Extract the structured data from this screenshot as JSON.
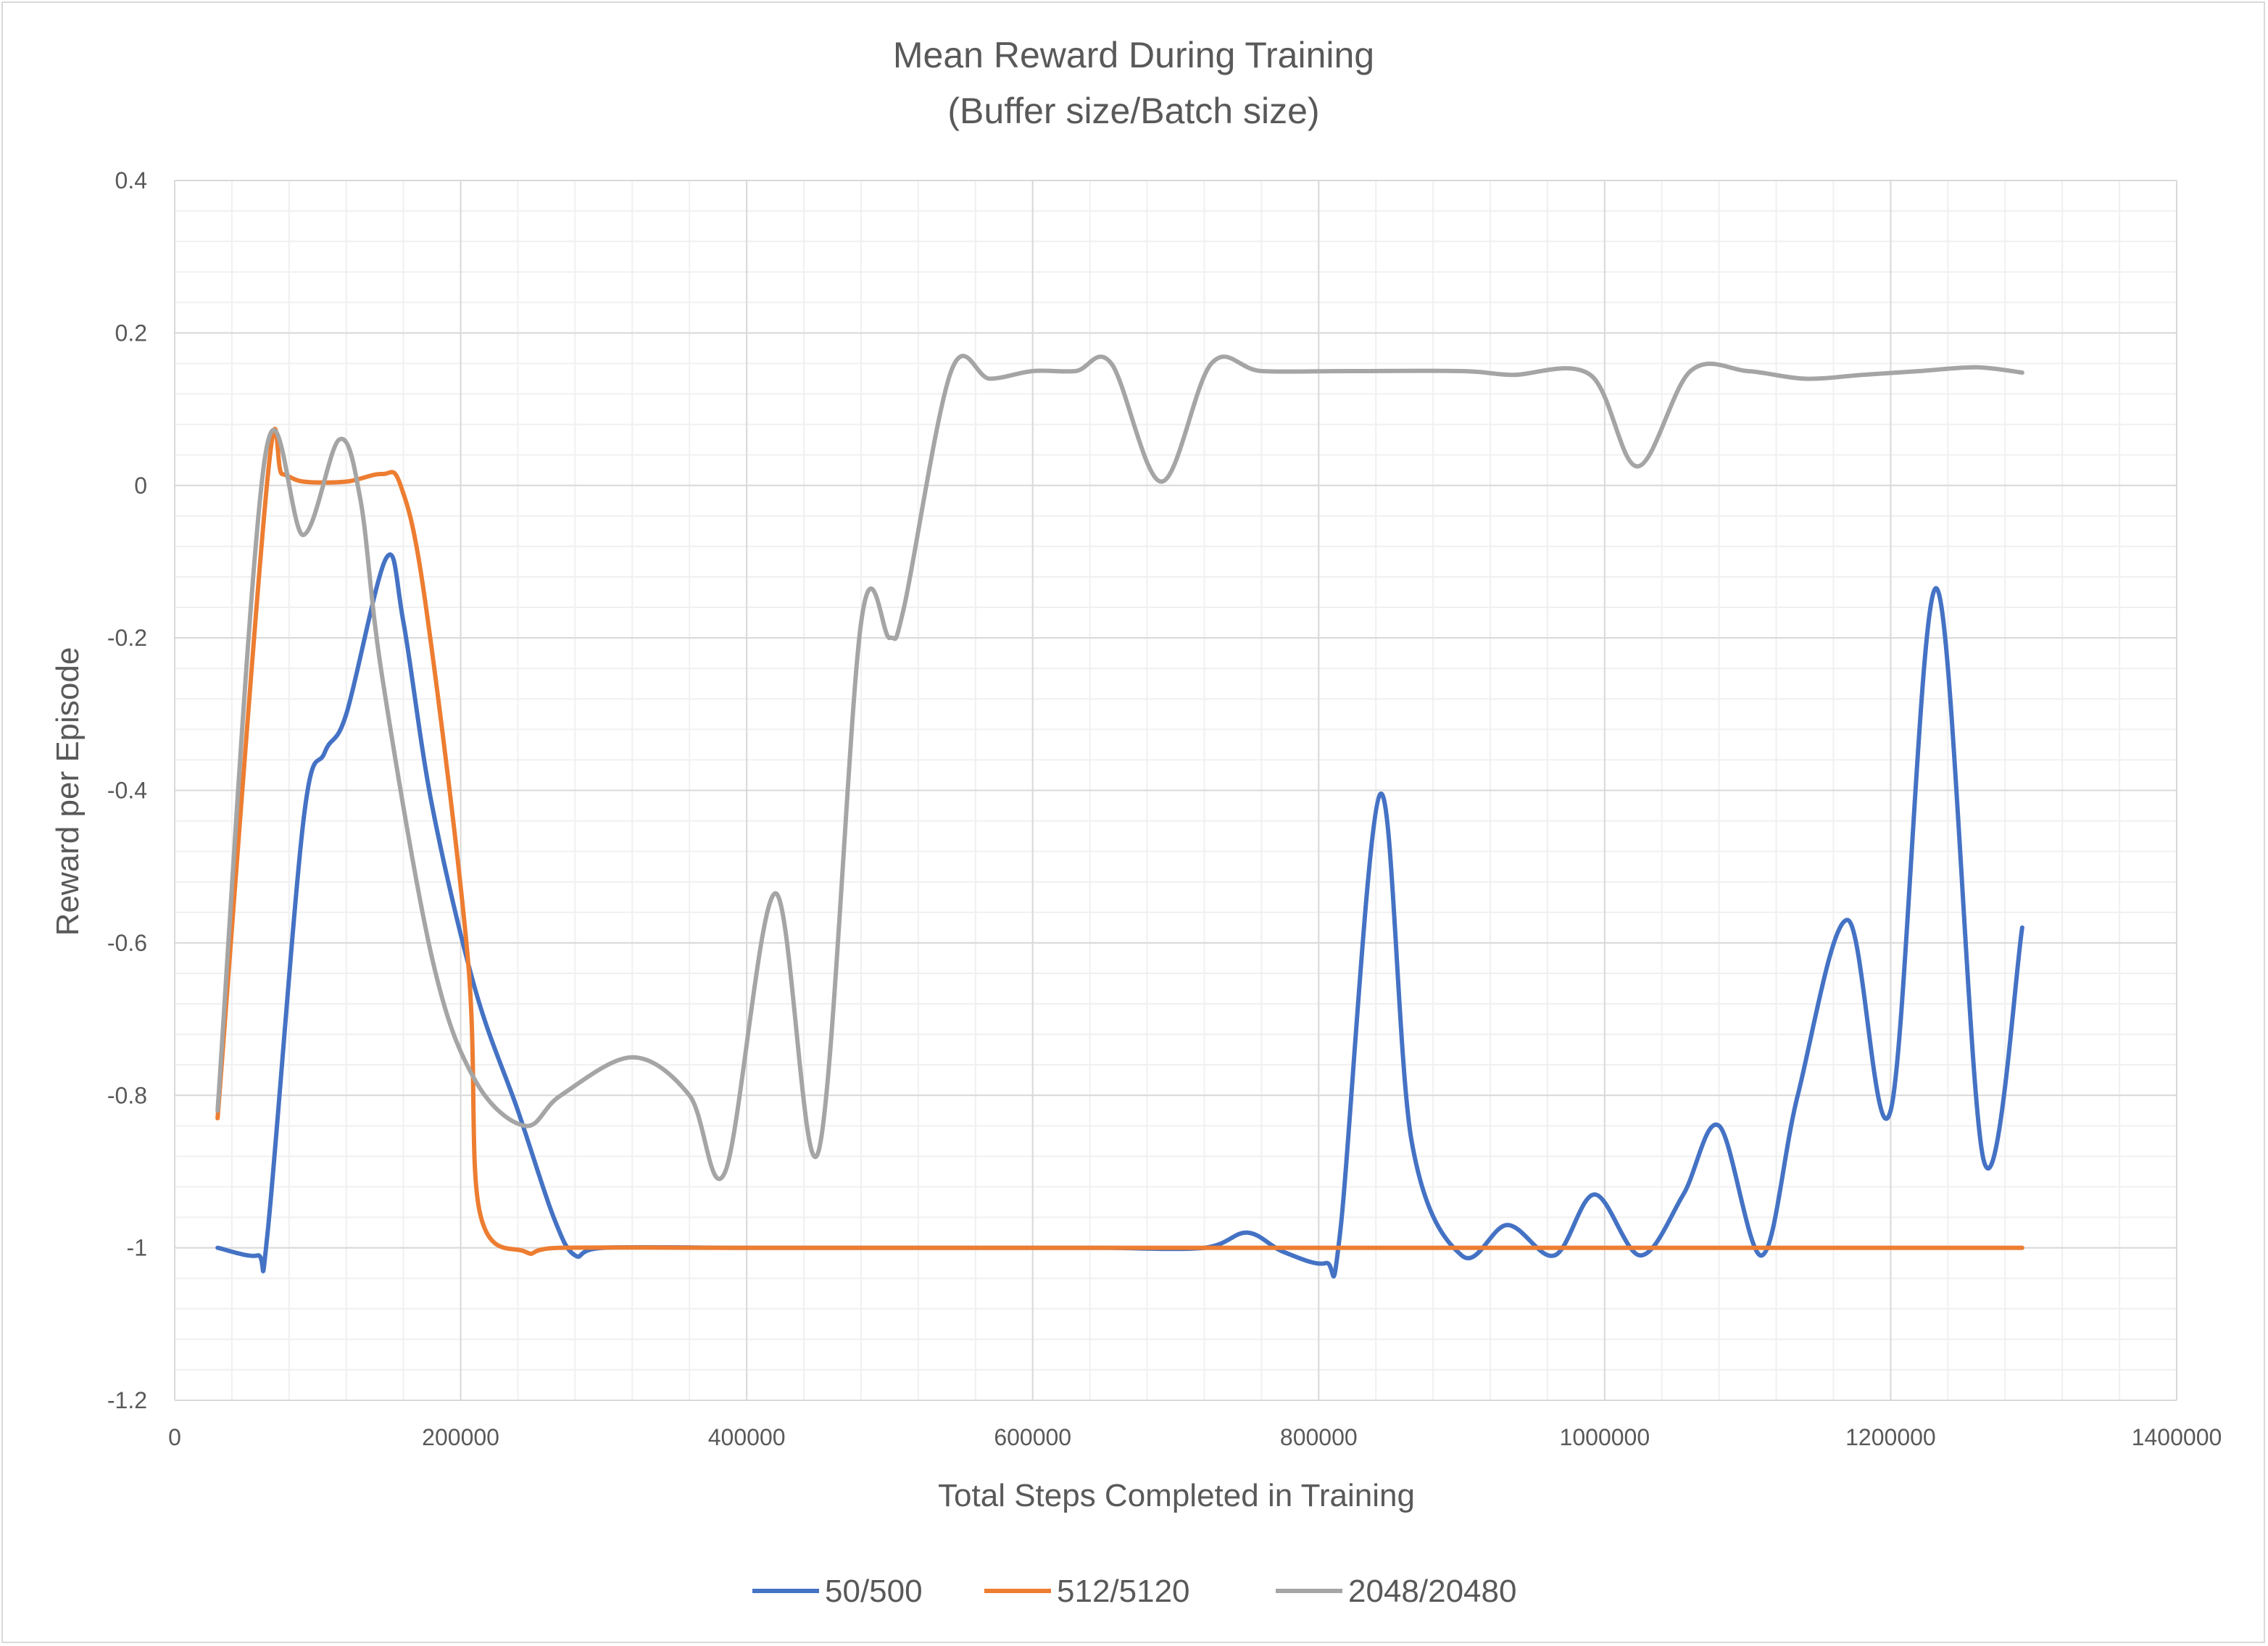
{
  "chart_data": {
    "type": "line",
    "title": "Mean Reward During Training",
    "subtitle": "(Buffer size/Batch size)",
    "xlabel": "Total Steps Completed in Training",
    "ylabel": "Reward per Episode",
    "xlim": [
      0,
      1400000
    ],
    "ylim": [
      -1.2,
      0.4
    ],
    "x_ticks": [
      0,
      200000,
      400000,
      600000,
      800000,
      1000000,
      1200000,
      1400000
    ],
    "x_tick_labels": [
      "0",
      "200000",
      "400000",
      "600000",
      "800000",
      "1000000",
      "1200000",
      "1400000"
    ],
    "y_ticks": [
      -1.2,
      -1,
      -0.8,
      -0.6,
      -0.4,
      -0.2,
      0,
      0.2,
      0.4
    ],
    "y_tick_labels": [
      "-1.2",
      "-1",
      "-0.8",
      "-0.6",
      "-0.4",
      "-0.2",
      "0",
      "0.2",
      "0.4"
    ],
    "grid": true,
    "minor_grid": true,
    "legend_position": "bottom",
    "series": [
      {
        "name": "50/500",
        "color": "#4472C4",
        "points": [
          [
            30000,
            -1.0
          ],
          [
            58000,
            -1.01
          ],
          [
            65000,
            -0.98
          ],
          [
            90000,
            -0.44
          ],
          [
            105000,
            -0.35
          ],
          [
            120000,
            -0.3
          ],
          [
            148000,
            -0.095
          ],
          [
            160000,
            -0.18
          ],
          [
            180000,
            -0.42
          ],
          [
            210000,
            -0.66
          ],
          [
            240000,
            -0.82
          ],
          [
            265000,
            -0.96
          ],
          [
            280000,
            -1.01
          ],
          [
            300000,
            -1.0
          ],
          [
            400000,
            -1.0
          ],
          [
            500000,
            -1.0
          ],
          [
            600000,
            -1.0
          ],
          [
            650000,
            -1.0
          ],
          [
            720000,
            -1.0
          ],
          [
            750000,
            -0.98
          ],
          [
            775000,
            -1.005
          ],
          [
            805000,
            -1.02
          ],
          [
            815000,
            -0.98
          ],
          [
            843000,
            -0.405
          ],
          [
            865000,
            -0.86
          ],
          [
            900000,
            -1.01
          ],
          [
            932000,
            -0.97
          ],
          [
            965000,
            -1.01
          ],
          [
            993000,
            -0.93
          ],
          [
            1025000,
            -1.01
          ],
          [
            1055000,
            -0.93
          ],
          [
            1080000,
            -0.84
          ],
          [
            1110000,
            -1.01
          ],
          [
            1135000,
            -0.8
          ],
          [
            1170000,
            -0.57
          ],
          [
            1200000,
            -0.82
          ],
          [
            1232000,
            -0.135
          ],
          [
            1265000,
            -0.885
          ],
          [
            1292000,
            -0.58
          ]
        ]
      },
      {
        "name": "512/5120",
        "color": "#ED7D31",
        "points": [
          [
            30000,
            -0.83
          ],
          [
            65000,
            0.01
          ],
          [
            75000,
            0.015
          ],
          [
            90000,
            0.005
          ],
          [
            120000,
            0.005
          ],
          [
            145000,
            0.015
          ],
          [
            158000,
            0.0
          ],
          [
            175000,
            -0.15
          ],
          [
            205000,
            -0.62
          ],
          [
            213000,
            -0.95
          ],
          [
            245000,
            -1.005
          ],
          [
            270000,
            -1.0
          ],
          [
            400000,
            -1.0
          ],
          [
            600000,
            -1.0
          ],
          [
            800000,
            -1.0
          ],
          [
            1000000,
            -1.0
          ],
          [
            1200000,
            -1.0
          ],
          [
            1292000,
            -1.0
          ]
        ]
      },
      {
        "name": "2048/20480",
        "color": "#A5A5A5",
        "points": [
          [
            30000,
            -0.82
          ],
          [
            63000,
            0.035
          ],
          [
            90000,
            -0.065
          ],
          [
            115000,
            0.06
          ],
          [
            130000,
            -0.02
          ],
          [
            145000,
            -0.25
          ],
          [
            180000,
            -0.62
          ],
          [
            210000,
            -0.78
          ],
          [
            245000,
            -0.84
          ],
          [
            270000,
            -0.8
          ],
          [
            320000,
            -0.75
          ],
          [
            360000,
            -0.8
          ],
          [
            385000,
            -0.9
          ],
          [
            420000,
            -0.535
          ],
          [
            450000,
            -0.875
          ],
          [
            480000,
            -0.18
          ],
          [
            500000,
            -0.2
          ],
          [
            510000,
            -0.16
          ],
          [
            543000,
            0.15
          ],
          [
            570000,
            0.14
          ],
          [
            600000,
            0.15
          ],
          [
            630000,
            0.15
          ],
          [
            655000,
            0.16
          ],
          [
            690000,
            0.005
          ],
          [
            725000,
            0.16
          ],
          [
            760000,
            0.15
          ],
          [
            820000,
            0.15
          ],
          [
            900000,
            0.15
          ],
          [
            935000,
            0.145
          ],
          [
            990000,
            0.145
          ],
          [
            1023000,
            0.025
          ],
          [
            1060000,
            0.15
          ],
          [
            1100000,
            0.15
          ],
          [
            1140000,
            0.14
          ],
          [
            1180000,
            0.145
          ],
          [
            1220000,
            0.15
          ],
          [
            1260000,
            0.155
          ],
          [
            1292000,
            0.148
          ]
        ]
      }
    ]
  }
}
